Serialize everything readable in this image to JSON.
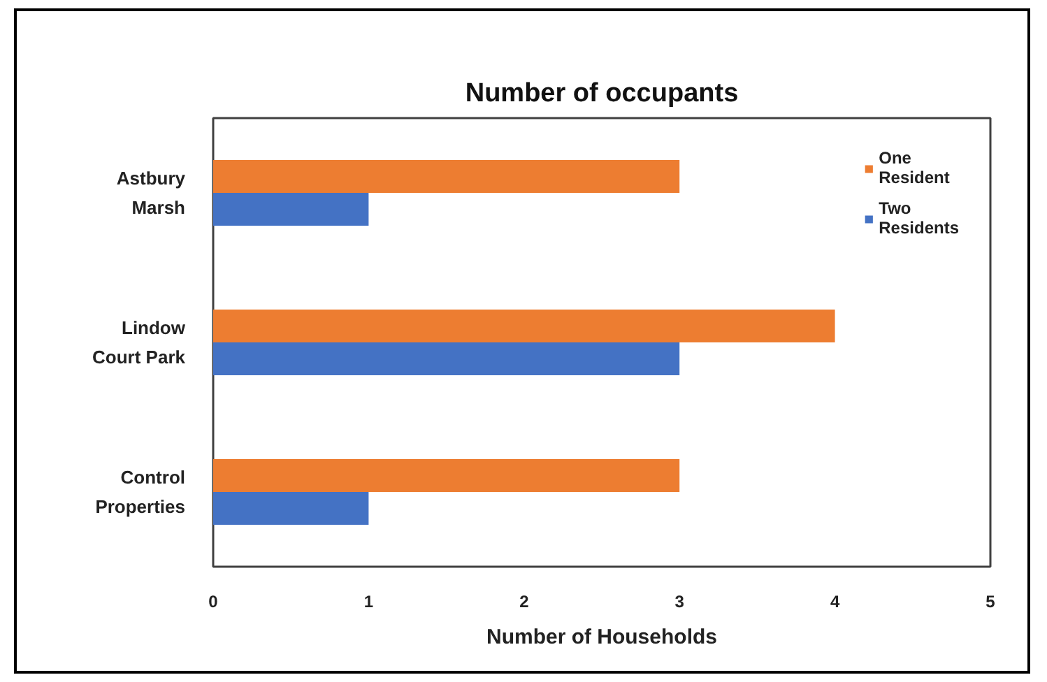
{
  "chart_data": {
    "type": "bar",
    "orientation": "horizontal",
    "title": "Number of occupants",
    "xlabel": "Number of Households",
    "categories": [
      "Astbury\nMarsh",
      "Lindow\nCourt Park",
      "Control\nProperties"
    ],
    "series": [
      {
        "name": "One\nResident",
        "color": "#ed7d31",
        "values": [
          3,
          4,
          3
        ]
      },
      {
        "name": "Two\nResidents",
        "color": "#4472c4",
        "values": [
          1,
          3,
          1
        ]
      }
    ],
    "xlim": [
      0,
      5
    ],
    "xticks": [
      0,
      1,
      2,
      3,
      4,
      5
    ],
    "legend": "top right"
  }
}
